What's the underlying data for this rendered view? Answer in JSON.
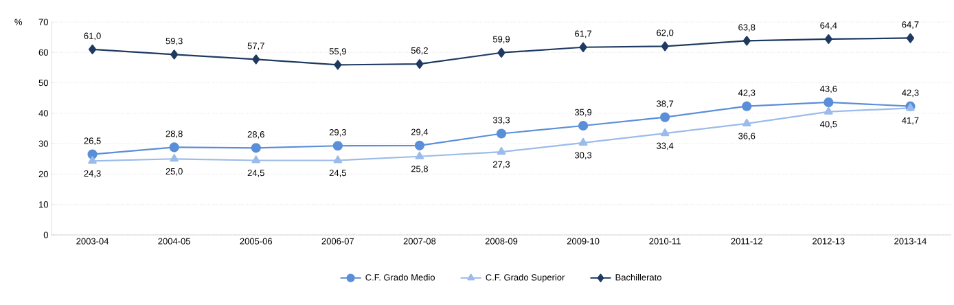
{
  "chart_data": {
    "type": "line",
    "ylabel": "%",
    "categories": [
      "2003-04",
      "2004-05",
      "2005-06",
      "2006-07",
      "2007-08",
      "2008-09",
      "2009-10",
      "2010-11",
      "2011-12",
      "2012-13",
      "2013-14"
    ],
    "series": [
      {
        "name": "C.F. Grado Medio",
        "color": "#5a8ed8",
        "marker": "circle",
        "values": [
          26.5,
          28.8,
          28.6,
          29.3,
          29.4,
          33.3,
          35.9,
          38.7,
          42.3,
          43.6,
          42.3
        ],
        "value_labels": [
          "26,5",
          "28,8",
          "28,6",
          "29,3",
          "29,4",
          "33,3",
          "35,9",
          "38,7",
          "42,3",
          "43,6",
          "42,3"
        ]
      },
      {
        "name": "C.F. Grado Superior",
        "color": "#9bbbea",
        "marker": "triangle",
        "values": [
          24.3,
          25.0,
          24.5,
          24.5,
          25.8,
          27.3,
          30.3,
          33.4,
          36.6,
          40.5,
          41.7
        ],
        "value_labels": [
          "24,3",
          "25,0",
          "24,5",
          "24,5",
          "25,8",
          "27,3",
          "30,3",
          "33,4",
          "36,6",
          "40,5",
          "41,7"
        ]
      },
      {
        "name": "Bachillerato",
        "color": "#1f3a60",
        "marker": "diamond",
        "values": [
          61.0,
          59.3,
          57.7,
          55.9,
          56.2,
          59.9,
          61.7,
          62.0,
          63.8,
          64.4,
          64.7
        ],
        "value_labels": [
          "61,0",
          "59,3",
          "57,7",
          "55,9",
          "56,2",
          "59,9",
          "61,7",
          "62,0",
          "63,8",
          "64,4",
          "64,7"
        ]
      }
    ],
    "ylim": [
      0,
      70
    ],
    "yticks": [
      0,
      10,
      20,
      30,
      40,
      50,
      60,
      70
    ],
    "grid": "y",
    "legend": "bottom",
    "line_style": "solid"
  }
}
